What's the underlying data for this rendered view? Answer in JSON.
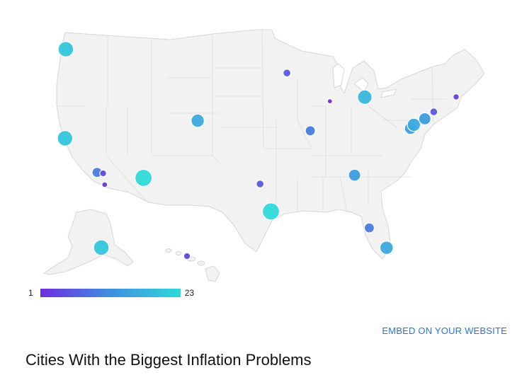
{
  "legend": {
    "min_label": "1",
    "max_label": "23",
    "color_min": "#6f2ce0",
    "color_mid": "#3f8fe0",
    "color_max": "#2fd9d9"
  },
  "embed": {
    "label": "EMBED ON YOUR WEBSITE"
  },
  "caption": {
    "title": "Cities With the Biggest Inflation Problems"
  },
  "chart_data": {
    "type": "map",
    "region": "United States",
    "encoding": "bubble size and color by rank",
    "value_range": [
      1,
      23
    ],
    "cities": [
      {
        "id": "seattle",
        "lon": -122.3,
        "lat": 47.6,
        "value": 20
      },
      {
        "id": "san-francisco",
        "lon": -122.4,
        "lat": 37.8,
        "value": 20
      },
      {
        "id": "los-angeles",
        "lon": -118.2,
        "lat": 34.05,
        "value": 10
      },
      {
        "id": "riverside",
        "lon": -117.4,
        "lat": 33.95,
        "value": 4
      },
      {
        "id": "san-diego",
        "lon": -117.2,
        "lat": 32.7,
        "value": 2
      },
      {
        "id": "phoenix",
        "lon": -112.1,
        "lat": 33.45,
        "value": 23
      },
      {
        "id": "denver",
        "lon": -104.99,
        "lat": 39.74,
        "value": 16
      },
      {
        "id": "minneapolis",
        "lon": -93.27,
        "lat": 44.98,
        "value": 6
      },
      {
        "id": "chicago",
        "lon": -87.63,
        "lat": 41.88,
        "value": 1
      },
      {
        "id": "st-louis",
        "lon": -90.2,
        "lat": 38.63,
        "value": 10
      },
      {
        "id": "detroit",
        "lon": -83.05,
        "lat": 42.33,
        "value": 18
      },
      {
        "id": "dallas",
        "lon": -96.8,
        "lat": 32.78,
        "value": 6
      },
      {
        "id": "houston",
        "lon": -95.37,
        "lat": 29.76,
        "value": 23
      },
      {
        "id": "atlanta",
        "lon": -84.39,
        "lat": 33.75,
        "value": 14
      },
      {
        "id": "tampa",
        "lon": -82.46,
        "lat": 27.95,
        "value": 10
      },
      {
        "id": "miami",
        "lon": -80.19,
        "lat": 25.76,
        "value": 16
      },
      {
        "id": "washington-dc",
        "lon": -77.04,
        "lat": 38.9,
        "value": 14
      },
      {
        "id": "baltimore",
        "lon": -76.61,
        "lat": 39.29,
        "value": 16
      },
      {
        "id": "philadelphia",
        "lon": -75.17,
        "lat": 39.95,
        "value": 14
      },
      {
        "id": "new-york",
        "lon": -74.0,
        "lat": 40.71,
        "value": 6
      },
      {
        "id": "boston",
        "lon": -71.06,
        "lat": 42.36,
        "value": 3
      },
      {
        "id": "anchorage",
        "region": "alaska",
        "value": 20
      },
      {
        "id": "honolulu",
        "region": "hawaii",
        "value": 4
      }
    ]
  }
}
